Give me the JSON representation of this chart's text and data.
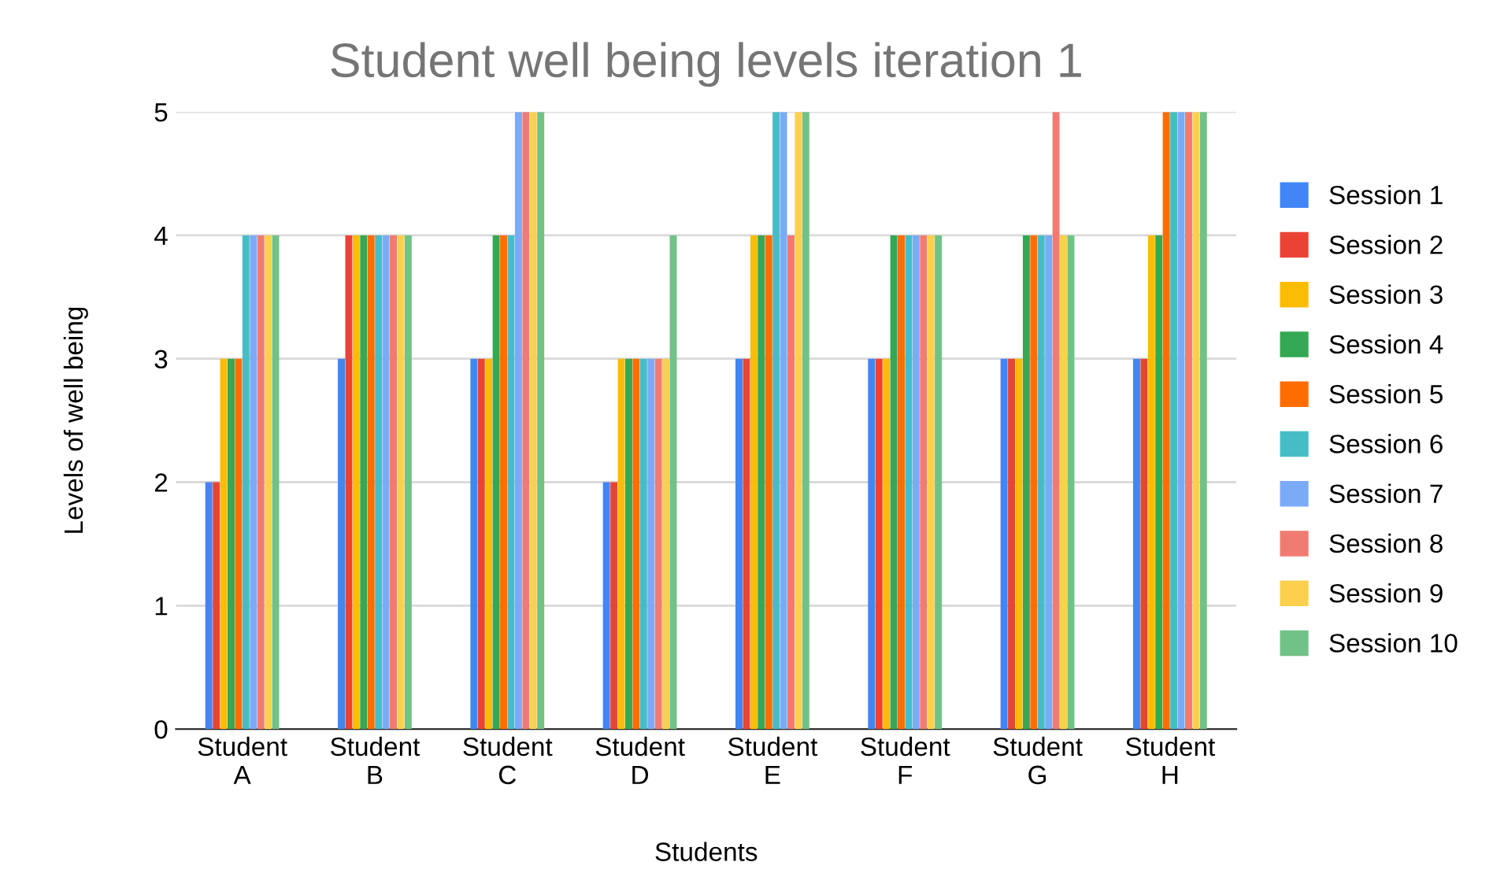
{
  "chart_data": {
    "type": "bar",
    "title": "Student well being levels iteration 1",
    "xlabel": "Students",
    "ylabel": "Levels of well being",
    "categories": [
      "Student\nA",
      "Student\nB",
      "Student\nC",
      "Student\nD",
      "Student\nE",
      "Student\nF",
      "Student\nG",
      "Student\nH"
    ],
    "series": [
      {
        "name": "Session 1",
        "color": "#4285f4",
        "values": [
          2,
          3,
          3,
          2,
          3,
          3,
          3,
          3
        ]
      },
      {
        "name": "Session 2",
        "color": "#ea4335",
        "values": [
          2,
          4,
          3,
          2,
          3,
          3,
          3,
          3
        ]
      },
      {
        "name": "Session 3",
        "color": "#fbbc04",
        "values": [
          3,
          4,
          3,
          3,
          4,
          3,
          3,
          4
        ]
      },
      {
        "name": "Session 4",
        "color": "#34a853",
        "values": [
          3,
          4,
          4,
          3,
          4,
          4,
          4,
          4
        ]
      },
      {
        "name": "Session 5",
        "color": "#ff6d01",
        "values": [
          3,
          4,
          4,
          3,
          4,
          4,
          4,
          5
        ]
      },
      {
        "name": "Session 6",
        "color": "#46bdc6",
        "values": [
          4,
          4,
          4,
          3,
          5,
          4,
          4,
          5
        ]
      },
      {
        "name": "Session 7",
        "color": "#7baaf7",
        "values": [
          4,
          4,
          5,
          3,
          5,
          4,
          4,
          5
        ]
      },
      {
        "name": "Session 8",
        "color": "#f07b72",
        "values": [
          4,
          4,
          5,
          3,
          4,
          4,
          5,
          5
        ]
      },
      {
        "name": "Session 9",
        "color": "#fcd04f",
        "values": [
          4,
          4,
          5,
          3,
          5,
          4,
          4,
          5
        ]
      },
      {
        "name": "Session 10",
        "color": "#71c287",
        "values": [
          4,
          4,
          5,
          4,
          5,
          4,
          4,
          5
        ]
      }
    ],
    "ylim": [
      0,
      5
    ],
    "yticks": [
      0,
      1,
      2,
      3,
      4,
      5
    ],
    "grid": "y",
    "legend": "right"
  }
}
